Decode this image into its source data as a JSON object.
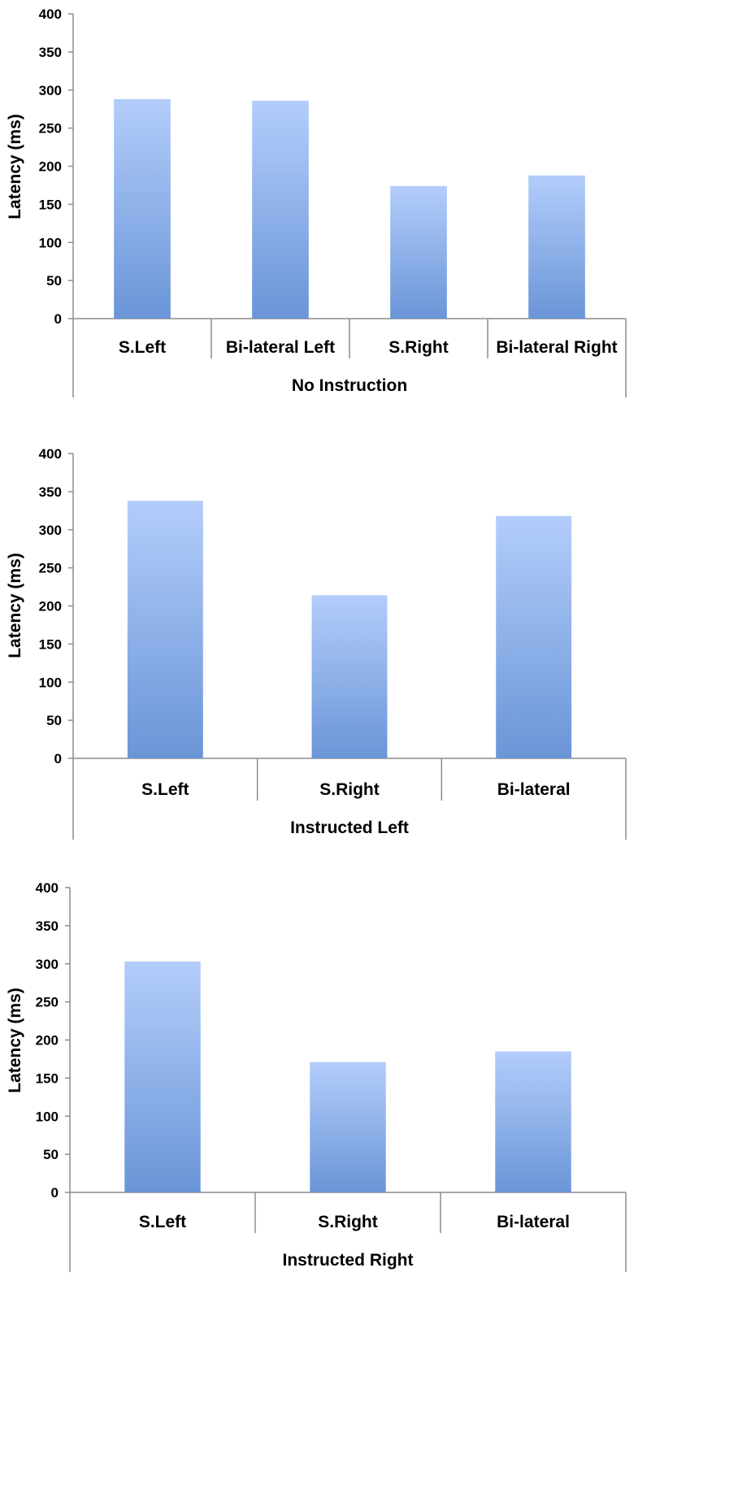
{
  "chart_data": [
    {
      "type": "bar",
      "group_label": "No Instruction",
      "ylabel": "Latency (ms)",
      "categories": [
        "S.Left",
        "Bi-lateral Left",
        "S.Right",
        "Bi-lateral Right"
      ],
      "values": [
        288,
        286,
        174,
        188
      ],
      "ylim": [
        0,
        400
      ],
      "yticks": [
        "0",
        "50",
        "100",
        "150",
        "200",
        "250",
        "300",
        "350",
        "400"
      ],
      "grid": false,
      "legend": "none",
      "bar_color_top": "#b3cdfb",
      "bar_color_bottom": "#6a95d7"
    },
    {
      "type": "bar",
      "group_label": "Instructed Left",
      "ylabel": "Latency (ms)",
      "categories": [
        "S.Left",
        "S.Right",
        "Bi-lateral"
      ],
      "values": [
        338,
        214,
        318
      ],
      "ylim": [
        0,
        400
      ],
      "yticks": [
        "0",
        "50",
        "100",
        "150",
        "200",
        "250",
        "300",
        "350",
        "400"
      ],
      "grid": false,
      "legend": "none",
      "bar_color_top": "#b3cdfb",
      "bar_color_bottom": "#6a95d7"
    },
    {
      "type": "bar",
      "group_label": "Instructed Right",
      "ylabel": "Latency (ms)",
      "categories": [
        "S.Left",
        "S.Right",
        "Bi-lateral"
      ],
      "values": [
        303,
        171,
        185
      ],
      "ylim": [
        0,
        400
      ],
      "yticks": [
        "0",
        "50",
        "100",
        "150",
        "200",
        "250",
        "300",
        "350",
        "400"
      ],
      "grid": false,
      "legend": "none",
      "bar_color_top": "#b3cdfb",
      "bar_color_bottom": "#6a95d7"
    }
  ]
}
